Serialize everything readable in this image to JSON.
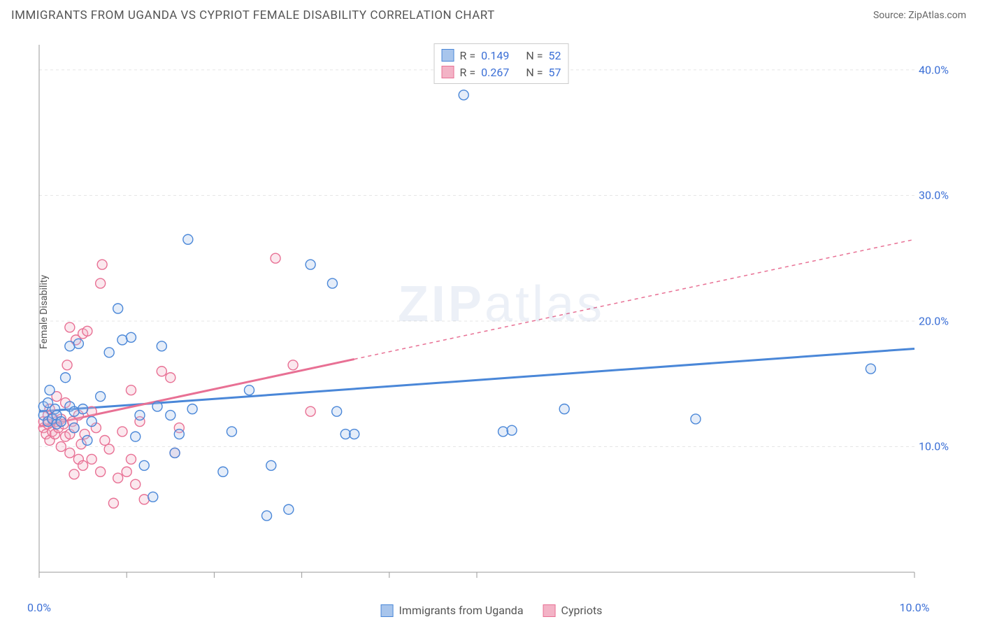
{
  "title": "IMMIGRANTS FROM UGANDA VS CYPRIOT FEMALE DISABILITY CORRELATION CHART",
  "source_prefix": "Source: ",
  "source_name": "ZipAtlas.com",
  "ylabel": "Female Disability",
  "watermark": {
    "part1": "ZIP",
    "part2": "atlas"
  },
  "chart": {
    "type": "scatter-with-trend",
    "xlim": [
      0,
      10
    ],
    "ylim": [
      0,
      42
    ],
    "xtick_positions": [
      0,
      1,
      2,
      3,
      4,
      5,
      10
    ],
    "xtick_labels": {
      "0": "0.0%",
      "10": "10.0%"
    },
    "ytick_positions": [
      10,
      20,
      30,
      40
    ],
    "ytick_labels": {
      "10": "10.0%",
      "20": "20.0%",
      "30": "30.0%",
      "40": "40.0%"
    },
    "grid_color": "#e5e5e5",
    "axis_color": "#999999",
    "background_color": "#ffffff",
    "marker_radius": 7,
    "marker_stroke_width": 1.4,
    "marker_fill_opacity": 0.3,
    "series": [
      {
        "name": "Immigrants from Uganda",
        "color": "#4a87d8",
        "fill": "#a8c5ec",
        "R": "0.149",
        "N": "52",
        "trend": {
          "x1": 0,
          "y1": 12.8,
          "x2": 10,
          "y2": 17.8,
          "solid_until_x": 10,
          "stroke_width": 3
        },
        "points": [
          [
            0.05,
            12.5
          ],
          [
            0.05,
            13.2
          ],
          [
            0.1,
            12.0
          ],
          [
            0.1,
            13.5
          ],
          [
            0.12,
            14.5
          ],
          [
            0.15,
            12.2
          ],
          [
            0.18,
            13.0
          ],
          [
            0.2,
            11.8
          ],
          [
            0.2,
            12.5
          ],
          [
            0.25,
            12.0
          ],
          [
            0.3,
            15.5
          ],
          [
            0.35,
            13.2
          ],
          [
            0.35,
            18.0
          ],
          [
            0.4,
            11.5
          ],
          [
            0.4,
            12.8
          ],
          [
            0.45,
            18.2
          ],
          [
            0.5,
            13.0
          ],
          [
            0.55,
            10.5
          ],
          [
            0.6,
            12.0
          ],
          [
            0.7,
            14.0
          ],
          [
            0.8,
            17.5
          ],
          [
            0.9,
            21.0
          ],
          [
            0.95,
            18.5
          ],
          [
            1.05,
            18.7
          ],
          [
            1.1,
            10.8
          ],
          [
            1.15,
            12.5
          ],
          [
            1.2,
            8.5
          ],
          [
            1.3,
            6.0
          ],
          [
            1.35,
            13.2
          ],
          [
            1.4,
            18.0
          ],
          [
            1.5,
            12.5
          ],
          [
            1.55,
            9.5
          ],
          [
            1.6,
            11.0
          ],
          [
            1.7,
            26.5
          ],
          [
            1.75,
            13.0
          ],
          [
            2.1,
            8.0
          ],
          [
            2.2,
            11.2
          ],
          [
            2.4,
            14.5
          ],
          [
            2.6,
            4.5
          ],
          [
            2.65,
            8.5
          ],
          [
            2.85,
            5.0
          ],
          [
            3.1,
            24.5
          ],
          [
            3.35,
            23.0
          ],
          [
            3.4,
            12.8
          ],
          [
            3.5,
            11.0
          ],
          [
            3.6,
            11.0
          ],
          [
            4.85,
            38.0
          ],
          [
            5.3,
            11.2
          ],
          [
            5.4,
            11.3
          ],
          [
            6.0,
            13.0
          ],
          [
            7.5,
            12.2
          ],
          [
            9.5,
            16.2
          ]
        ]
      },
      {
        "name": "Cypriots",
        "color": "#e87094",
        "fill": "#f3b3c6",
        "R": "0.267",
        "N": "57",
        "trend": {
          "x1": 0,
          "y1": 11.6,
          "x2": 10,
          "y2": 26.5,
          "solid_until_x": 3.6,
          "stroke_width": 3
        },
        "points": [
          [
            0.05,
            11.5
          ],
          [
            0.05,
            12.0
          ],
          [
            0.08,
            11.0
          ],
          [
            0.1,
            11.8
          ],
          [
            0.1,
            12.5
          ],
          [
            0.12,
            10.5
          ],
          [
            0.12,
            13.0
          ],
          [
            0.15,
            11.2
          ],
          [
            0.15,
            12.3
          ],
          [
            0.18,
            11.0
          ],
          [
            0.2,
            12.0
          ],
          [
            0.2,
            14.0
          ],
          [
            0.22,
            11.5
          ],
          [
            0.25,
            10.0
          ],
          [
            0.25,
            12.2
          ],
          [
            0.28,
            11.8
          ],
          [
            0.3,
            10.8
          ],
          [
            0.3,
            13.5
          ],
          [
            0.32,
            16.5
          ],
          [
            0.35,
            9.5
          ],
          [
            0.35,
            11.0
          ],
          [
            0.35,
            19.5
          ],
          [
            0.38,
            12.0
          ],
          [
            0.4,
            7.8
          ],
          [
            0.4,
            11.5
          ],
          [
            0.42,
            18.5
          ],
          [
            0.45,
            9.0
          ],
          [
            0.45,
            12.5
          ],
          [
            0.48,
            10.2
          ],
          [
            0.5,
            8.5
          ],
          [
            0.5,
            19.0
          ],
          [
            0.52,
            11.0
          ],
          [
            0.55,
            19.2
          ],
          [
            0.6,
            9.0
          ],
          [
            0.6,
            12.8
          ],
          [
            0.65,
            11.5
          ],
          [
            0.7,
            8.0
          ],
          [
            0.7,
            23.0
          ],
          [
            0.72,
            24.5
          ],
          [
            0.75,
            10.5
          ],
          [
            0.8,
            9.8
          ],
          [
            0.85,
            5.5
          ],
          [
            0.9,
            7.5
          ],
          [
            0.95,
            11.2
          ],
          [
            1.0,
            8.0
          ],
          [
            1.05,
            14.5
          ],
          [
            1.05,
            9.0
          ],
          [
            1.1,
            7.0
          ],
          [
            1.15,
            12.0
          ],
          [
            1.2,
            5.8
          ],
          [
            1.4,
            16.0
          ],
          [
            1.5,
            15.5
          ],
          [
            1.55,
            9.5
          ],
          [
            1.6,
            11.5
          ],
          [
            2.7,
            25.0
          ],
          [
            2.9,
            16.5
          ],
          [
            3.1,
            12.8
          ]
        ]
      }
    ]
  },
  "legend_bottom": [
    {
      "swatch_fill": "#a8c5ec",
      "swatch_stroke": "#4a87d8",
      "label": "Immigrants from Uganda"
    },
    {
      "swatch_fill": "#f3b3c6",
      "swatch_stroke": "#e87094",
      "label": "Cypriots"
    }
  ]
}
